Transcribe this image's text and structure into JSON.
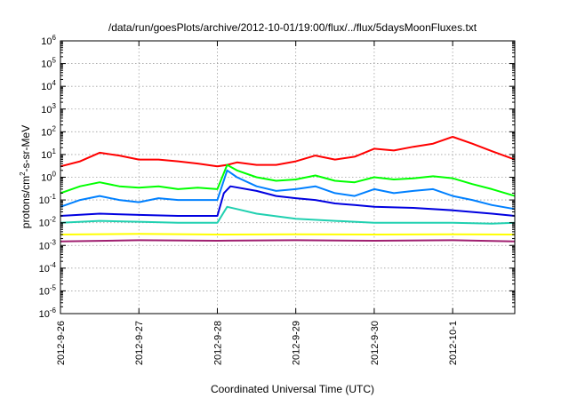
{
  "chart_data": {
    "type": "line",
    "title": "/data/run/goesPlots/archive/2012-10-01/19:00/flux/../flux/5daysMoonFluxes.txt",
    "xlabel": "Coordinated Universal Time (UTC)",
    "ylabel_parts": [
      "protons/cm",
      "2",
      "-s-sr-MeV"
    ],
    "x_ticks": [
      "2012-9-26",
      "2012-9-27",
      "2012-9-28",
      "2012-9-29",
      "2012-9-30",
      "2012-10-1"
    ],
    "xlim": [
      "2012-9-26",
      "2012-10-1 19:00"
    ],
    "y_scale": "log",
    "ylim": [
      1e-06,
      1000000.0
    ],
    "y_ticks": [
      {
        "base": "10",
        "exp": "-6"
      },
      {
        "base": "10",
        "exp": "-5"
      },
      {
        "base": "10",
        "exp": "-4"
      },
      {
        "base": "10",
        "exp": "-3"
      },
      {
        "base": "10",
        "exp": "-2"
      },
      {
        "base": "10",
        "exp": "-1"
      },
      {
        "base": "10",
        "exp": "0"
      },
      {
        "base": "10",
        "exp": "1"
      },
      {
        "base": "10",
        "exp": "2"
      },
      {
        "base": "10",
        "exp": "3"
      },
      {
        "base": "10",
        "exp": "4"
      },
      {
        "base": "10",
        "exp": "5"
      },
      {
        "base": "10",
        "exp": "6"
      }
    ],
    "grid": true,
    "series": [
      {
        "color": "#ff0000",
        "x": [
          "2012-9-26 00:00",
          "2012-9-26 06:00",
          "2012-9-26 12:00",
          "2012-9-26 18:00",
          "2012-9-27 00:00",
          "2012-9-27 06:00",
          "2012-9-27 12:00",
          "2012-9-27 18:00",
          "2012-9-28 00:00",
          "2012-9-28 03:00",
          "2012-9-28 06:00",
          "2012-9-28 12:00",
          "2012-9-28 18:00",
          "2012-9-29 00:00",
          "2012-9-29 06:00",
          "2012-9-29 12:00",
          "2012-9-29 18:00",
          "2012-9-30 00:00",
          "2012-9-30 06:00",
          "2012-9-30 12:00",
          "2012-9-30 18:00",
          "2012-10-1 00:00",
          "2012-10-1 06:00",
          "2012-10-1 12:00",
          "2012-10-1 19:00"
        ],
        "y": [
          3,
          5,
          12,
          9,
          6,
          6,
          5,
          4,
          3,
          3.5,
          4.5,
          3.5,
          3.5,
          5,
          9,
          6,
          8,
          18,
          15,
          22,
          30,
          60,
          30,
          14,
          6
        ]
      },
      {
        "color": "#00ff00",
        "x": [
          "2012-9-26 00:00",
          "2012-9-26 06:00",
          "2012-9-26 12:00",
          "2012-9-26 18:00",
          "2012-9-27 00:00",
          "2012-9-27 06:00",
          "2012-9-27 12:00",
          "2012-9-27 18:00",
          "2012-9-28 00:00",
          "2012-9-28 03:00",
          "2012-9-28 06:00",
          "2012-9-28 12:00",
          "2012-9-28 18:00",
          "2012-9-29 00:00",
          "2012-9-29 06:00",
          "2012-9-29 12:00",
          "2012-9-29 18:00",
          "2012-9-30 00:00",
          "2012-9-30 06:00",
          "2012-9-30 12:00",
          "2012-9-30 18:00",
          "2012-10-1 00:00",
          "2012-10-1 06:00",
          "2012-10-1 12:00",
          "2012-10-1 19:00"
        ],
        "y": [
          0.2,
          0.4,
          0.6,
          0.4,
          0.35,
          0.4,
          0.3,
          0.35,
          0.3,
          3.5,
          2,
          1,
          0.7,
          0.8,
          1.2,
          0.7,
          0.6,
          1,
          0.8,
          0.9,
          1.1,
          0.9,
          0.5,
          0.3,
          0.15
        ]
      },
      {
        "color": "#0080ff",
        "x": [
          "2012-9-26 00:00",
          "2012-9-26 06:00",
          "2012-9-26 12:00",
          "2012-9-26 18:00",
          "2012-9-27 00:00",
          "2012-9-27 06:00",
          "2012-9-27 12:00",
          "2012-9-27 18:00",
          "2012-9-28 00:00",
          "2012-9-28 03:00",
          "2012-9-28 06:00",
          "2012-9-28 12:00",
          "2012-9-28 18:00",
          "2012-9-29 00:00",
          "2012-9-29 06:00",
          "2012-9-29 12:00",
          "2012-9-29 18:00",
          "2012-9-30 00:00",
          "2012-9-30 06:00",
          "2012-9-30 12:00",
          "2012-9-30 18:00",
          "2012-10-1 00:00",
          "2012-10-1 06:00",
          "2012-10-1 12:00",
          "2012-10-1 19:00"
        ],
        "y": [
          0.05,
          0.1,
          0.15,
          0.1,
          0.08,
          0.12,
          0.1,
          0.1,
          0.1,
          2,
          1,
          0.4,
          0.25,
          0.3,
          0.4,
          0.2,
          0.15,
          0.3,
          0.2,
          0.25,
          0.3,
          0.15,
          0.1,
          0.06,
          0.04
        ]
      },
      {
        "color": "#0000e0",
        "x": [
          "2012-9-26 00:00",
          "2012-9-26 12:00",
          "2012-9-27 00:00",
          "2012-9-27 12:00",
          "2012-9-28 00:00",
          "2012-9-28 02:00",
          "2012-9-28 04:00",
          "2012-9-28 12:00",
          "2012-9-28 18:00",
          "2012-9-29 00:00",
          "2012-9-29 06:00",
          "2012-9-29 12:00",
          "2012-9-29 18:00",
          "2012-9-30 00:00",
          "2012-9-30 12:00",
          "2012-10-1 00:00",
          "2012-10-1 12:00",
          "2012-10-1 19:00"
        ],
        "y": [
          0.02,
          0.025,
          0.022,
          0.02,
          0.02,
          0.2,
          0.4,
          0.25,
          0.15,
          0.12,
          0.1,
          0.07,
          0.06,
          0.05,
          0.045,
          0.035,
          0.025,
          0.02
        ]
      },
      {
        "color": "#20d0b0",
        "x": [
          "2012-9-26 00:00",
          "2012-9-26 12:00",
          "2012-9-27 00:00",
          "2012-9-27 12:00",
          "2012-9-28 00:00",
          "2012-9-28 03:00",
          "2012-9-28 06:00",
          "2012-9-28 12:00",
          "2012-9-29 00:00",
          "2012-9-29 12:00",
          "2012-9-30 00:00",
          "2012-9-30 12:00",
          "2012-10-1 00:00",
          "2012-10-1 12:00",
          "2012-10-1 19:00"
        ],
        "y": [
          0.01,
          0.012,
          0.011,
          0.01,
          0.01,
          0.05,
          0.04,
          0.025,
          0.015,
          0.012,
          0.01,
          0.01,
          0.01,
          0.009,
          0.01
        ]
      },
      {
        "color": "#ffff00",
        "x": [
          "2012-9-26 00:00",
          "2012-9-27 00:00",
          "2012-9-28 00:00",
          "2012-9-29 00:00",
          "2012-9-30 00:00",
          "2012-10-1 00:00",
          "2012-10-1 19:00"
        ],
        "y": [
          0.003,
          0.0032,
          0.003,
          0.0031,
          0.003,
          0.0031,
          0.003
        ]
      },
      {
        "color": "#a02070",
        "x": [
          "2012-9-26 00:00",
          "2012-9-27 00:00",
          "2012-9-28 00:00",
          "2012-9-29 00:00",
          "2012-9-30 00:00",
          "2012-10-1 00:00",
          "2012-10-1 19:00"
        ],
        "y": [
          0.0015,
          0.0017,
          0.0016,
          0.0017,
          0.0016,
          0.0017,
          0.0015
        ]
      }
    ]
  }
}
